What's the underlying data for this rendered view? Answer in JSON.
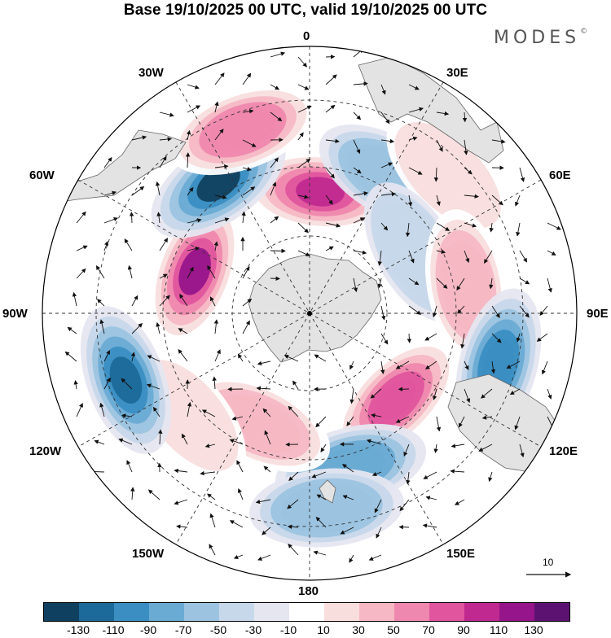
{
  "title": "Base 19/10/2025 00 UTC, valid 19/10/2025 00 UTC",
  "brand": "MODES",
  "brand_mark": "©",
  "longitude_labels": {
    "lon_0": "0",
    "lon_30e": "30E",
    "lon_60e": "60E",
    "lon_90e": "90E",
    "lon_120e": "120E",
    "lon_150e": "150E",
    "lon_180": "180",
    "lon_150w": "150W",
    "lon_120w": "120W",
    "lon_90w": "90W",
    "lon_60w": "60W",
    "lon_30w": "30W"
  },
  "reference_vector": {
    "label": "10"
  },
  "colorbar": {
    "colors": [
      "#10405f",
      "#1b6a99",
      "#3a8ec2",
      "#6aabd4",
      "#9cc4e0",
      "#c7d8ea",
      "#e5e6f0",
      "#ffffff",
      "#f9dede",
      "#f5b8c4",
      "#ef88ae",
      "#e0559e",
      "#c02a90",
      "#96158a",
      "#5c1270"
    ],
    "labels": [
      "-130",
      "-110",
      "-90",
      "-70",
      "-50",
      "-30",
      "-10",
      "10",
      "30",
      "50",
      "70",
      "90",
      "110",
      "130"
    ]
  },
  "anomaly_centers": [
    {
      "lon": 5,
      "value": 110
    },
    {
      "lon": 30,
      "value": -50
    },
    {
      "lon": 45,
      "value": 30
    },
    {
      "lon": 60,
      "value": -30
    },
    {
      "lon": 80,
      "value": 50
    },
    {
      "lon": 105,
      "value": -90
    },
    {
      "lon": 135,
      "value": 90
    },
    {
      "lon": 165,
      "value": -70
    },
    {
      "lon": 175,
      "value": -50
    },
    {
      "lon": -155,
      "value": 50
    },
    {
      "lon": -130,
      "value": 30
    },
    {
      "lon": -110,
      "value": -110
    },
    {
      "lon": -70,
      "value": 130
    },
    {
      "lon": -35,
      "value": -130
    },
    {
      "lon": -20,
      "value": 70
    }
  ]
}
